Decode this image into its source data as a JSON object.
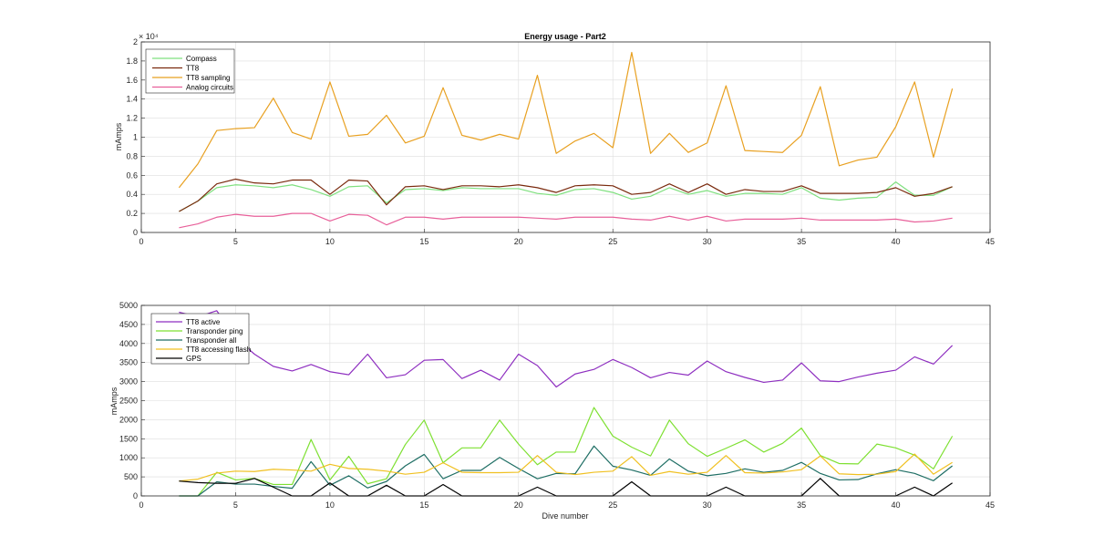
{
  "chart_data": [
    {
      "type": "line",
      "title": "Energy usage - Part2",
      "xlabel": "",
      "ylabel": "mAmps",
      "exponent_label": "× 10⁴",
      "xlim": [
        0,
        45
      ],
      "ylim": [
        0,
        2
      ],
      "xticks": [
        0,
        5,
        10,
        15,
        20,
        25,
        30,
        35,
        40,
        45
      ],
      "yticks": [
        0,
        0.2,
        0.4,
        0.6,
        0.8,
        1,
        1.2,
        1.4,
        1.6,
        1.8,
        2
      ],
      "ytick_labels": [
        "0",
        "0.2",
        "0.4",
        "0.6",
        "0.8",
        "1",
        "1.2",
        "1.4",
        "1.6",
        "1.8",
        "2"
      ],
      "grid": true,
      "legend_position": "top-left",
      "x": [
        2,
        3,
        4,
        5,
        6,
        7,
        8,
        9,
        10,
        11,
        12,
        13,
        14,
        15,
        16,
        17,
        18,
        19,
        20,
        21,
        22,
        23,
        24,
        25,
        26,
        27,
        28,
        29,
        30,
        31,
        32,
        33,
        34,
        35,
        36,
        37,
        38,
        39,
        40,
        41,
        42,
        43
      ],
      "series": [
        {
          "name": "Compass",
          "color": "#7fe07f",
          "values": [
            0.22,
            0.33,
            0.47,
            0.5,
            0.49,
            0.47,
            0.5,
            0.45,
            0.38,
            0.48,
            0.49,
            0.31,
            0.45,
            0.46,
            0.44,
            0.47,
            0.46,
            0.46,
            0.46,
            0.41,
            0.39,
            0.45,
            0.46,
            0.42,
            0.35,
            0.38,
            0.47,
            0.4,
            0.44,
            0.38,
            0.41,
            0.41,
            0.4,
            0.47,
            0.36,
            0.34,
            0.36,
            0.37,
            0.53,
            0.39,
            0.39,
            0.48
          ]
        },
        {
          "name": "TT8",
          "color": "#7a2a0e",
          "values": [
            0.22,
            0.33,
            0.51,
            0.56,
            0.52,
            0.51,
            0.55,
            0.55,
            0.4,
            0.55,
            0.54,
            0.29,
            0.48,
            0.49,
            0.45,
            0.49,
            0.49,
            0.48,
            0.5,
            0.47,
            0.42,
            0.49,
            0.5,
            0.49,
            0.4,
            0.42,
            0.51,
            0.42,
            0.51,
            0.4,
            0.45,
            0.43,
            0.43,
            0.49,
            0.41,
            0.41,
            0.41,
            0.42,
            0.47,
            0.38,
            0.41,
            0.48
          ]
        },
        {
          "name": "TT8 sampling",
          "color": "#e8a020",
          "values": [
            0.47,
            0.72,
            1.07,
            1.09,
            1.1,
            1.41,
            1.05,
            0.98,
            1.58,
            1.01,
            1.03,
            1.23,
            0.94,
            1.01,
            1.52,
            1.02,
            0.97,
            1.03,
            0.98,
            1.65,
            0.83,
            0.96,
            1.04,
            0.89,
            1.89,
            0.83,
            1.04,
            0.84,
            0.94,
            1.54,
            0.86,
            0.85,
            0.84,
            1.02,
            1.53,
            0.7,
            0.76,
            0.79,
            1.11,
            1.58,
            0.79,
            1.51
          ]
        },
        {
          "name": "Analog circuits",
          "color": "#e8609a",
          "values": [
            0.05,
            0.09,
            0.16,
            0.19,
            0.17,
            0.17,
            0.2,
            0.2,
            0.12,
            0.19,
            0.18,
            0.08,
            0.16,
            0.16,
            0.14,
            0.16,
            0.16,
            0.16,
            0.16,
            0.15,
            0.14,
            0.16,
            0.16,
            0.16,
            0.14,
            0.13,
            0.17,
            0.13,
            0.17,
            0.12,
            0.14,
            0.14,
            0.14,
            0.15,
            0.13,
            0.13,
            0.13,
            0.13,
            0.14,
            0.11,
            0.12,
            0.15
          ]
        }
      ]
    },
    {
      "type": "line",
      "title": "",
      "xlabel": "Dive number",
      "ylabel": "mAmps",
      "xlim": [
        0,
        45
      ],
      "ylim": [
        0,
        5000
      ],
      "xticks": [
        0,
        5,
        10,
        15,
        20,
        25,
        30,
        35,
        40,
        45
      ],
      "yticks": [
        0,
        500,
        1000,
        1500,
        2000,
        2500,
        3000,
        3500,
        4000,
        4500,
        5000
      ],
      "ytick_labels": [
        "0",
        "500",
        "1000",
        "1500",
        "2000",
        "2500",
        "3000",
        "3500",
        "4000",
        "4500",
        "5000"
      ],
      "grid": true,
      "legend_position": "top-left",
      "x": [
        2,
        3,
        4,
        5,
        6,
        7,
        8,
        9,
        10,
        11,
        12,
        13,
        14,
        15,
        16,
        17,
        18,
        19,
        20,
        21,
        22,
        23,
        24,
        25,
        26,
        27,
        28,
        29,
        30,
        31,
        32,
        33,
        34,
        35,
        36,
        37,
        38,
        39,
        40,
        41,
        42,
        43
      ],
      "series": [
        {
          "name": "TT8 active",
          "color": "#8e2fc0",
          "values": [
            4820,
            4700,
            4860,
            4150,
            3720,
            3400,
            3280,
            3450,
            3260,
            3180,
            3720,
            3100,
            3180,
            3560,
            3580,
            3080,
            3300,
            3040,
            3720,
            3420,
            2860,
            3200,
            3320,
            3580,
            3370,
            3100,
            3240,
            3170,
            3540,
            3260,
            3110,
            2980,
            3040,
            3490,
            3020,
            3000,
            3120,
            3220,
            3300,
            3650,
            3460,
            3950
          ]
        },
        {
          "name": "Transponder ping",
          "color": "#7ee032",
          "values": [
            0,
            0,
            620,
            420,
            460,
            300,
            300,
            1480,
            420,
            1040,
            320,
            450,
            1350,
            1990,
            870,
            1260,
            1260,
            1990,
            1360,
            820,
            1150,
            1150,
            2320,
            1570,
            1280,
            1050,
            1990,
            1370,
            1040,
            1250,
            1470,
            1150,
            1380,
            1780,
            1060,
            850,
            840,
            1360,
            1260,
            1070,
            710,
            1570
          ]
        },
        {
          "name": "Transponder all",
          "color": "#1e6e64",
          "values": [
            0,
            0,
            370,
            310,
            310,
            250,
            200,
            900,
            280,
            530,
            210,
            380,
            790,
            1090,
            450,
            670,
            670,
            1010,
            720,
            450,
            590,
            580,
            1310,
            780,
            680,
            540,
            970,
            650,
            530,
            590,
            710,
            620,
            670,
            880,
            590,
            420,
            430,
            580,
            690,
            590,
            400,
            790
          ]
        },
        {
          "name": "TT8 accessing flash",
          "color": "#f0c020",
          "values": [
            390,
            440,
            600,
            650,
            640,
            700,
            680,
            650,
            830,
            720,
            700,
            650,
            570,
            620,
            870,
            620,
            610,
            610,
            620,
            1060,
            620,
            560,
            620,
            650,
            1030,
            540,
            640,
            570,
            620,
            1060,
            610,
            600,
            630,
            690,
            1050,
            580,
            560,
            570,
            640,
            1100,
            570,
            880
          ]
        },
        {
          "name": "GPS",
          "color": "#000000",
          "values": [
            390,
            350,
            330,
            330,
            460,
            230,
            0,
            0,
            340,
            0,
            0,
            280,
            0,
            0,
            300,
            0,
            0,
            0,
            0,
            230,
            0,
            0,
            0,
            0,
            370,
            0,
            0,
            0,
            0,
            230,
            0,
            0,
            0,
            0,
            460,
            0,
            0,
            0,
            0,
            230,
            0,
            340
          ]
        }
      ]
    }
  ]
}
